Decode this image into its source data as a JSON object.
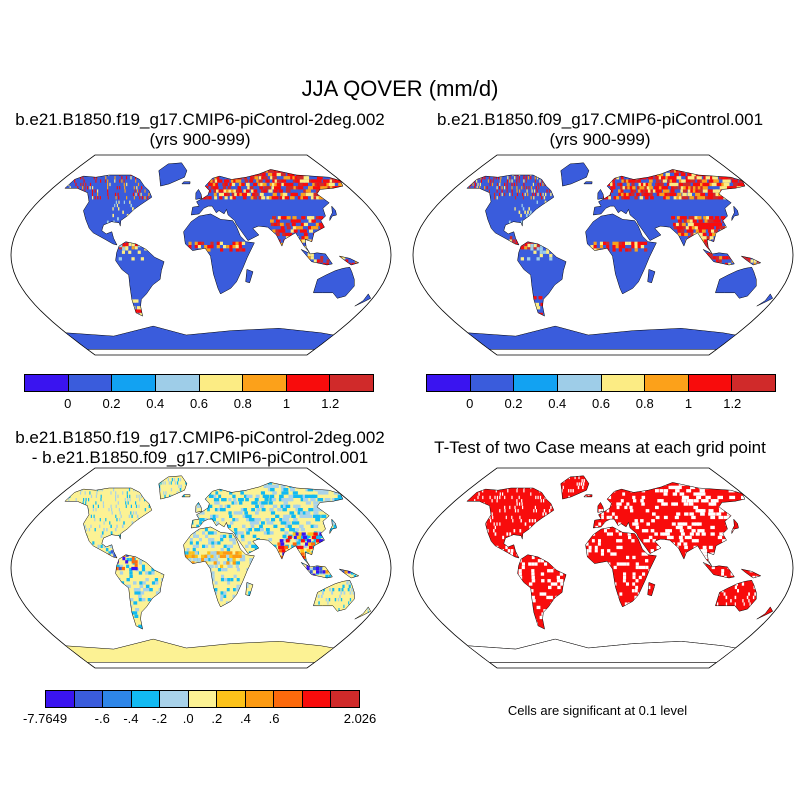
{
  "title": "JJA QOVER (mm/d)",
  "panels": {
    "top_left": {
      "title_line1": "b.e21.B1850.f19_g17.CMIP6-piControl-2deg.002",
      "title_line2": "(yrs 900-999)"
    },
    "top_right": {
      "title_line1": "b.e21.B1850.f09_g17.CMIP6-piControl.001",
      "title_line2": "(yrs 900-999)"
    },
    "bottom_left": {
      "title_line1": "b.e21.B1850.f19_g17.CMIP6-piControl-2deg.002",
      "title_line2": "- b.e21.B1850.f09_g17.CMIP6-piControl.001"
    },
    "bottom_right": {
      "title_line1": "T-Test of two Case means at each grid point",
      "note": "Cells are significant at 0.1 level"
    }
  },
  "colorbars": {
    "case": {
      "colors": [
        "#3a14f0",
        "#3a5cdc",
        "#12a2f2",
        "#9ecde8",
        "#fcec84",
        "#fca11a",
        "#f80c0c",
        "#d02a2a"
      ],
      "tick_labels": [
        "0",
        "0.2",
        "0.4",
        "0.6",
        "0.8",
        "1",
        "1.2"
      ]
    },
    "diff": {
      "colors": [
        "#3a14f0",
        "#3a5cdc",
        "#2e86e8",
        "#12baf2",
        "#a8d2ea",
        "#fcf294",
        "#fcc21a",
        "#fc9a12",
        "#fc6a0c",
        "#f80c0c",
        "#d02a2a"
      ],
      "tick_labels": [
        "-7.7649",
        "-.6",
        "-.4",
        "-.2",
        ".0",
        ".2",
        ".4",
        ".6",
        "2.026"
      ]
    }
  },
  "map_colors": {
    "case_base": "#3a5cdc",
    "case_hot": "#f80c0c",
    "case_warm": "#fca11a",
    "case_mid": "#fcec84",
    "diff_base": "#fcf294",
    "diff_cool": "#a8d2ea",
    "diff_neg": "#3a14f0",
    "ttest_sig": "#f80c0c",
    "ocean": "#ffffff",
    "coast": "#000000"
  }
}
